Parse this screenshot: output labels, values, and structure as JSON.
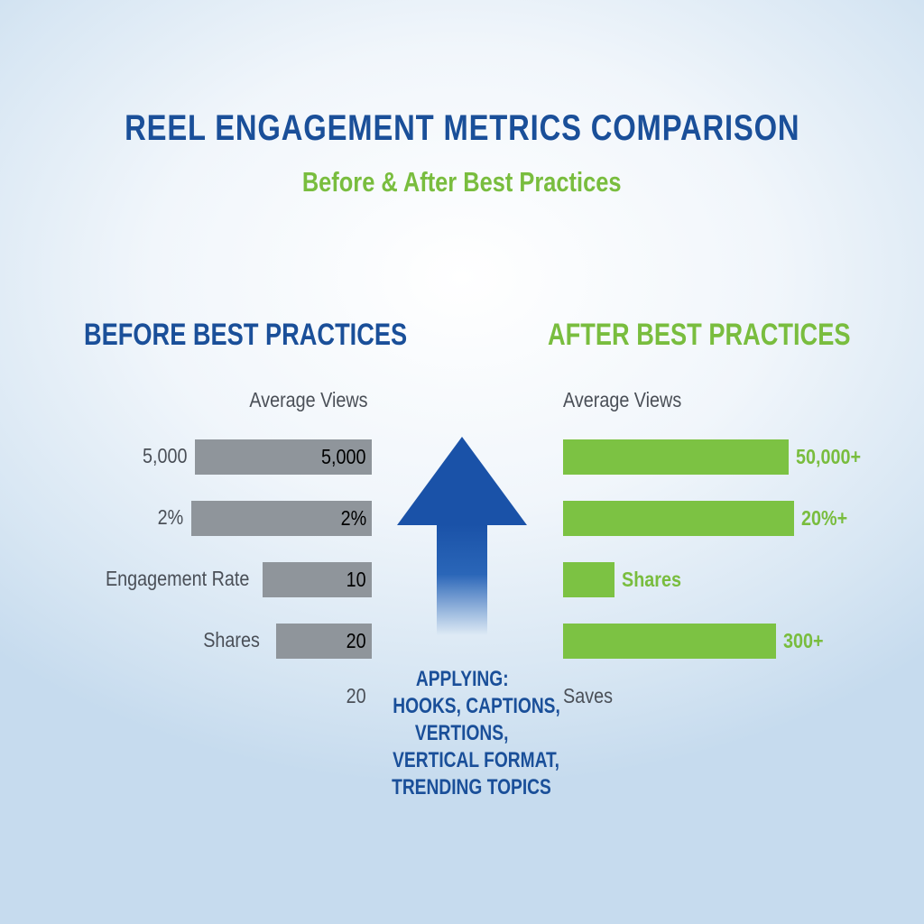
{
  "header": {
    "title": "REEL ENGAGEMENT METRICS COMPARISON",
    "subtitle": "Before & After Best Practices"
  },
  "colors": {
    "title_blue": "#1a4f99",
    "accent_green": "#79bd3e",
    "bar_gray": "#8f959b",
    "bar_green": "#7cc243"
  },
  "center": {
    "arrow_icon": "up-arrow-icon",
    "applying_lines": [
      "APPLYING:",
      "HOOKS, CAPTIONS,",
      "VERTIONS,",
      "VERTICAL FORMAT,",
      "TRENDING TOPICS"
    ]
  },
  "chart_data": {
    "type": "bar",
    "before": {
      "title": "BEFORE BEST PRACTICES",
      "top_label": "Average Views",
      "rows": [
        {
          "left_label": "5,000",
          "bar_label": "5,000",
          "value": 5000
        },
        {
          "left_label": "2%",
          "bar_label": "2%",
          "value": 2
        },
        {
          "left_label": "Engagement Rate",
          "bar_label": "10",
          "value": 10
        },
        {
          "left_label": "Shares",
          "bar_label": "20",
          "value": 20
        }
      ],
      "bottom_label": "20"
    },
    "after": {
      "title": "AFTER BEST PRACTICES",
      "top_label": "Average Views",
      "rows": [
        {
          "label": "50,000+",
          "value": 50000
        },
        {
          "label": "20%+",
          "value": 20
        },
        {
          "label": "Shares",
          "value": null
        },
        {
          "label": "300+",
          "value": 300
        }
      ],
      "bottom_label": "Saves"
    }
  }
}
